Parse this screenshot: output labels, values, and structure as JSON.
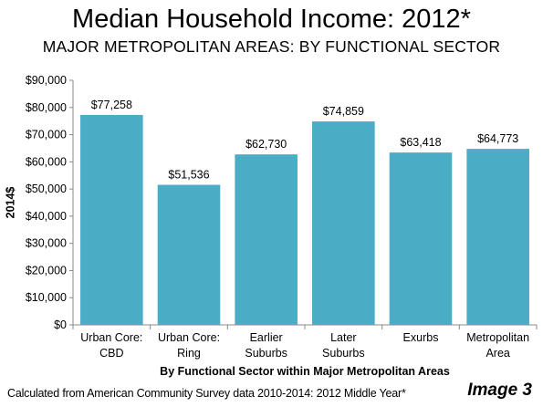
{
  "header": {
    "title": "Median Household Income: 2012*",
    "subtitle": "MAJOR METROPOLITAN AREAS: BY FUNCTIONAL SECTOR"
  },
  "footer": {
    "source": "Calculated from American Community Survey data 2010-2014: 2012 Middle Year*",
    "image_label": "Image 3"
  },
  "chart_data": {
    "type": "bar",
    "title": "Median Household Income: 2012*",
    "subtitle": "MAJOR METROPOLITAN AREAS: BY FUNCTIONAL SECTOR",
    "categories": [
      [
        "Urban Core:",
        "CBD"
      ],
      [
        "Urban Core:",
        "Ring"
      ],
      [
        "Earlier",
        "Suburbs"
      ],
      [
        "Later",
        "Suburbs"
      ],
      [
        "Exurbs"
      ],
      [
        "Metropolitan",
        "Area"
      ]
    ],
    "values": [
      77258,
      51536,
      62730,
      74859,
      63418,
      64773
    ],
    "data_labels": [
      "$77,258",
      "$51,536",
      "$62,730",
      "$74,859",
      "$63,418",
      "$64,773"
    ],
    "xlabel": "By Functional Sector within Major Metropolitan Areas",
    "ylabel": "2014$",
    "ylim": [
      0,
      90000
    ],
    "ytick_labels": [
      "$0",
      "$10,000",
      "$20,000",
      "$30,000",
      "$40,000",
      "$50,000",
      "$60,000",
      "$70,000",
      "$80,000",
      "$90,000"
    ],
    "grid": false,
    "legend": "none",
    "bar_color": "#4BACC6"
  }
}
